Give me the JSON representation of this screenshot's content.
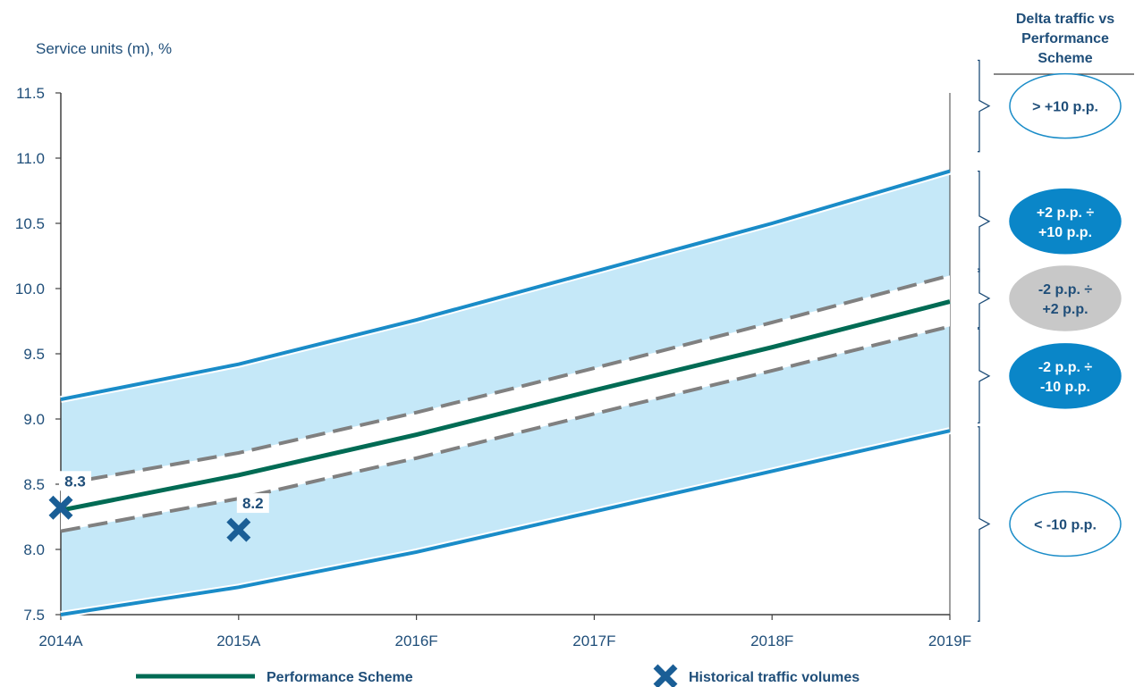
{
  "chart_data": {
    "type": "line",
    "ylabel": "Service units (m), %",
    "categories": [
      "2014A",
      "2015A",
      "2016F",
      "2017F",
      "2018F",
      "2019F"
    ],
    "y_ticks": [
      "11.5",
      "11.0",
      "10.5",
      "10.0",
      "9.5",
      "9.0",
      "8.5",
      "8.0",
      "7.5"
    ],
    "ylim": [
      7.5,
      11.5
    ],
    "band": {
      "upper": [
        9.15,
        9.42,
        9.76,
        10.13,
        10.5,
        10.9
      ],
      "lower": [
        7.5,
        7.71,
        7.98,
        8.29,
        8.6,
        8.91
      ]
    },
    "series": [
      {
        "name": "Performance Scheme",
        "values": [
          8.3,
          8.57,
          8.88,
          9.22,
          9.55,
          9.9
        ],
        "color": "#006b54"
      },
      {
        "values": [
          8.5,
          8.74,
          9.05,
          9.39,
          9.74,
          10.1
        ],
        "color": "#808080",
        "style": "dashed"
      },
      {
        "values": [
          8.14,
          8.39,
          8.7,
          9.04,
          9.37,
          9.71
        ],
        "color": "#808080",
        "style": "dashed"
      }
    ],
    "historical": {
      "name": "Historical traffic volumes",
      "points": [
        {
          "x": "2014A",
          "value": 8.32,
          "label": "8.3"
        },
        {
          "x": "2015A",
          "value": 8.15,
          "label": "8.2"
        }
      ],
      "color": "#1a5e96"
    },
    "band_color": "#c5e8f8",
    "band_line_color": "#1a8cc8",
    "grid": false,
    "legend": "bottom"
  },
  "panel": {
    "title_lines": [
      "Delta traffic vs",
      "Performance",
      "Scheme"
    ],
    "bands": [
      {
        "lines": [
          "> +10 p.p."
        ],
        "style": "outline",
        "y_from": 11.75,
        "y_to": 11.05
      },
      {
        "lines": [
          "+2 p.p. ÷",
          "+10 p.p."
        ],
        "style": "filled-blue",
        "y_from": 10.9,
        "y_to": 10.13
      },
      {
        "lines": [
          "-2 p.p. ÷",
          "+2 p.p."
        ],
        "style": "filled-gray",
        "y_from": 10.15,
        "y_to": 9.7
      },
      {
        "lines": [
          "-2 p.p. ÷",
          "-10 p.p."
        ],
        "style": "filled-blue",
        "y_from": 9.69,
        "y_to": 8.97
      },
      {
        "lines": [
          "< -10 p.p."
        ],
        "style": "outline",
        "y_from": 8.94,
        "y_to": 7.45
      }
    ]
  }
}
